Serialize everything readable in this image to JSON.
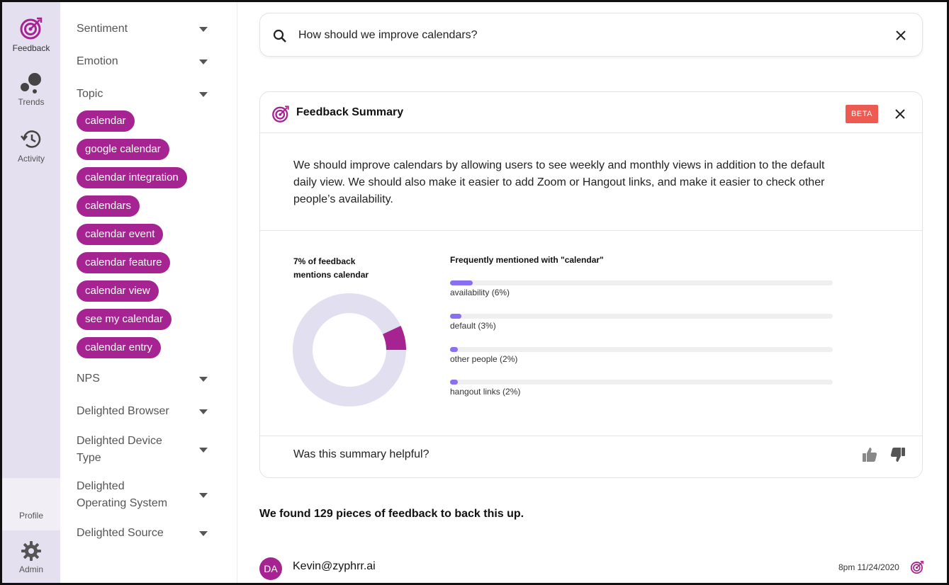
{
  "rail": {
    "feedback_label": "Feedback",
    "trends_label": "Trends",
    "activity_label": "Activity",
    "profile_label": "Profile",
    "admin_label": "Admin",
    "icons": {
      "feedback": "target-icon",
      "trends": "bubbles-icon",
      "activity": "history-icon",
      "admin": "gear-icon"
    },
    "accent": "#a62392"
  },
  "filters": {
    "sentiment": "Sentiment",
    "emotion": "Emotion",
    "topic": "Topic",
    "topic_chips": [
      "calendar",
      "google calendar",
      "calendar integration",
      "calendars",
      "calendar event",
      "calendar feature",
      "calendar view",
      "see my calendar",
      "calendar entry"
    ],
    "nps": "NPS",
    "browser": "Delighted Browser",
    "device_line1": "Delighted Device",
    "device_line2": "Type",
    "os_line1": "Delighted",
    "os_line2": "Operating System",
    "source": "Delighted Source"
  },
  "search": {
    "value": "How should we improve calendars?"
  },
  "summary_card": {
    "title": "Feedback Summary",
    "badge": "BETA",
    "badge_color": "#ec5a52",
    "text": "We should improve calendars by allowing users to see weekly and monthly views in addition to the default daily view. We should also make it easier to add Zoom or Hangout links, and make it easier to check other people’s availability.",
    "mentions_line1": "7% of feedback",
    "mentions_line2": "mentions calendar",
    "mentions_fraction": 0.07,
    "frequent_title": "Frequently mentioned with \"calendar\"",
    "helpful_question": "Was this summary helpful?"
  },
  "chart_data": {
    "type": "bar",
    "title": "Frequently mentioned with \"calendar\"",
    "categories": [
      "availability (6%)",
      "default (3%)",
      "other people (2%)",
      "hangout links (2%)"
    ],
    "values": [
      6,
      3,
      2,
      2
    ],
    "ylim": [
      0,
      100
    ],
    "color": "#8a6ff2"
  },
  "results": {
    "found_text": "We found 129 pieces of feedback to back this up.",
    "first_item": {
      "avatar_initials": "DA",
      "author": "Kevin@zyphrr.ai",
      "date": "8pm 11/24/2020"
    }
  }
}
